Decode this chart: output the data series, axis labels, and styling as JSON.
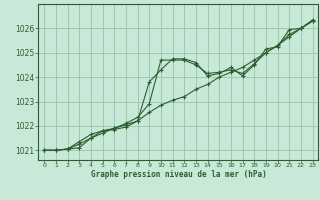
{
  "xlabel": "Graphe pression niveau de la mer (hPa)",
  "bg_color": "#c8e8d8",
  "grid_color": "#a0c8b0",
  "line_color": "#2d5e30",
  "hours": [
    0,
    1,
    2,
    3,
    4,
    5,
    6,
    7,
    8,
    9,
    10,
    11,
    12,
    13,
    14,
    15,
    16,
    17,
    18,
    19,
    20,
    21,
    22,
    23
  ],
  "line1": [
    1021.0,
    1021.0,
    1021.05,
    1021.1,
    1021.5,
    1021.8,
    1021.85,
    1021.95,
    1022.2,
    1023.8,
    1024.3,
    1024.75,
    1024.75,
    1024.6,
    1024.05,
    1024.15,
    1024.4,
    1024.05,
    1024.5,
    1025.15,
    1025.25,
    1025.95,
    1026.0,
    1026.35
  ],
  "line2": [
    1021.0,
    1021.0,
    1021.05,
    1021.35,
    1021.65,
    1021.8,
    1021.9,
    1022.1,
    1022.35,
    1022.9,
    1024.7,
    1024.7,
    1024.7,
    1024.5,
    1024.15,
    1024.2,
    1024.3,
    1024.15,
    1024.55,
    1025.0,
    1025.3,
    1025.75,
    1026.0,
    1026.3
  ],
  "line3": [
    1021.0,
    1021.0,
    1021.05,
    1021.25,
    1021.5,
    1021.7,
    1021.9,
    1022.05,
    1022.2,
    1022.55,
    1022.85,
    1023.05,
    1023.2,
    1023.5,
    1023.7,
    1024.0,
    1024.2,
    1024.4,
    1024.7,
    1025.0,
    1025.3,
    1025.65,
    1026.0,
    1026.3
  ],
  "ylim": [
    1020.6,
    1027.0
  ],
  "yticks": [
    1021,
    1022,
    1023,
    1024,
    1025,
    1026
  ],
  "xticks": [
    0,
    1,
    2,
    3,
    4,
    5,
    6,
    7,
    8,
    9,
    10,
    11,
    12,
    13,
    14,
    15,
    16,
    17,
    18,
    19,
    20,
    21,
    22,
    23
  ]
}
